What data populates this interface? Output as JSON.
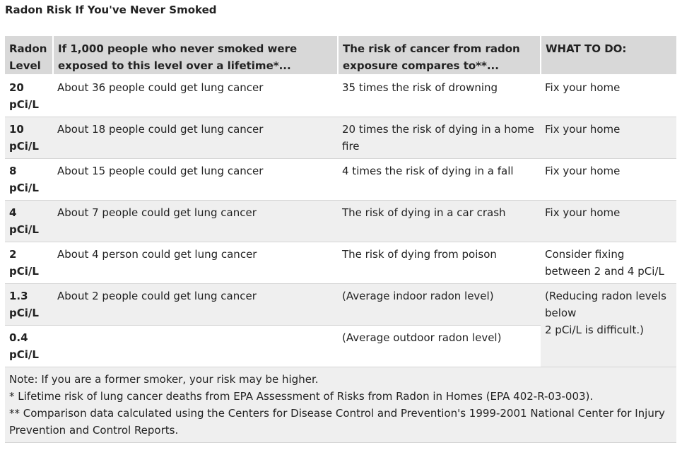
{
  "title": "Radon Risk If You've Never Smoked",
  "columns": [
    "Radon Level",
    "If 1,000 people who never smoked were exposed to this level over a lifetime*...",
    "The risk of cancer from radon exposure compares to**...",
    "WHAT TO DO:"
  ],
  "rows": [
    {
      "level": "20 pCi/L",
      "people": "About 36 people could get lung cancer",
      "compare": "35 times the risk of drowning",
      "action": "Fix your home"
    },
    {
      "level": "10 pCi/L",
      "people": "About 18 people could get lung cancer",
      "compare": "20 times the risk of dying in a home fire",
      "action": "Fix your home"
    },
    {
      "level": "8 pCi/L",
      "people": "About 15 people could get lung cancer",
      "compare": "4 times the risk of dying in a fall",
      "action": "Fix your home"
    },
    {
      "level": "4 pCi/L",
      "people": "About 7 people could get lung cancer",
      "compare": "The risk of dying in a car crash",
      "action": "Fix your home"
    },
    {
      "level": "2 pCi/L",
      "people": "About 4 person could get lung cancer",
      "compare": "The risk of dying from poison",
      "action": "Consider fixing between 2 and 4 pCi/L"
    },
    {
      "level": "1.3 pCi/L",
      "people": "About 2 people could get lung cancer",
      "compare": "(Average indoor radon level)"
    },
    {
      "level": "0.4 pCi/L",
      "people": "",
      "compare": "(Average outdoor radon level)"
    }
  ],
  "merged_action_line1": "(Reducing radon levels below",
  "merged_action_line2": "2 pCi/L is difficult.)",
  "notes": [
    "Note: If you are a former smoker, your risk may be higher.",
    "* Lifetime risk of lung cancer deaths from EPA Assessment of Risks from Radon in Homes (EPA 402-R-03-003).",
    "** Comparison data calculated using the Centers for Disease Control and Prevention's 1999-2001 National Center for Injury Prevention and Control Reports."
  ]
}
